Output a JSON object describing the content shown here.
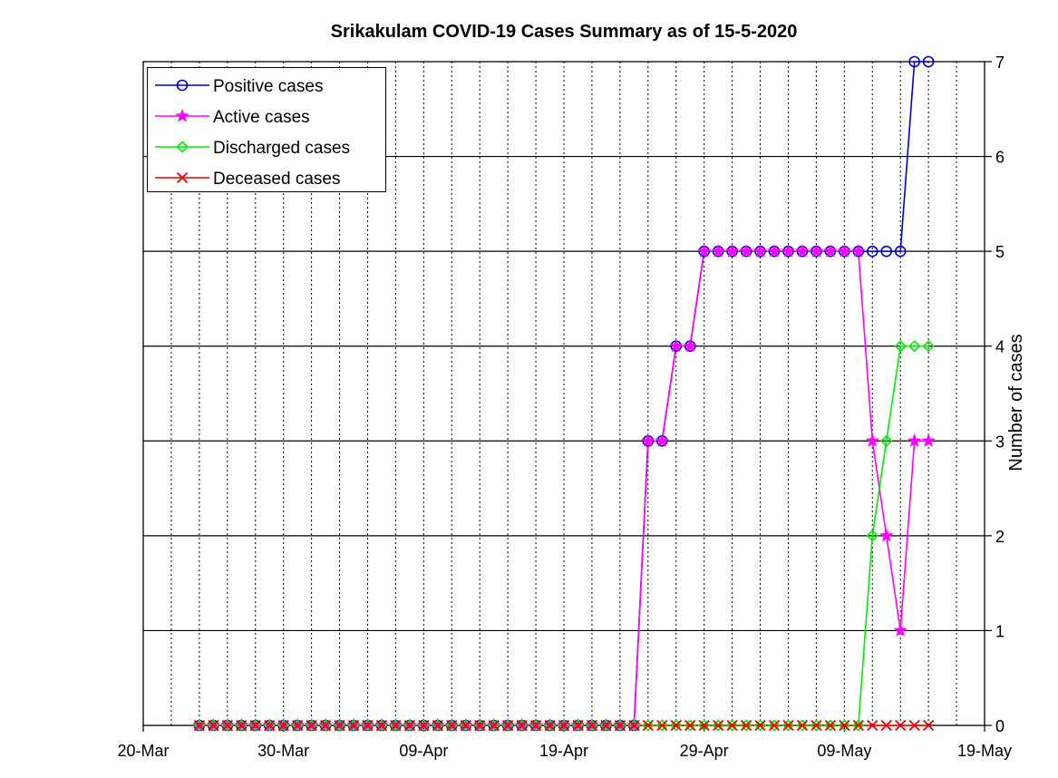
{
  "chart_data": {
    "type": "line",
    "title": "Srikakulam COVID-19 Cases Summary as of 15-5-2020",
    "xlabel": "",
    "ylabel": "Number of cases",
    "x_start": "2020-03-24",
    "x_end": "2020-05-15",
    "x_ticks": [
      "20-Mar",
      "30-Mar",
      "09-Apr",
      "19-Apr",
      "29-Apr",
      "09-May",
      "19-May"
    ],
    "y_ticks": [
      "0",
      "1",
      "2",
      "3",
      "4",
      "5",
      "6",
      "7"
    ],
    "xlim": [
      "2020-03-20",
      "2020-05-19"
    ],
    "ylim": [
      0,
      7
    ],
    "grid": "x-dotted, y-solid",
    "y_axis_side": "right",
    "legend_position": "top-left",
    "series": [
      {
        "name": "Positive cases",
        "color": "#0000cc",
        "marker": "circle",
        "values": [
          0,
          0,
          0,
          0,
          0,
          0,
          0,
          0,
          0,
          0,
          0,
          0,
          0,
          0,
          0,
          0,
          0,
          0,
          0,
          0,
          0,
          0,
          0,
          0,
          0,
          0,
          0,
          0,
          0,
          0,
          0,
          0,
          3,
          3,
          4,
          4,
          5,
          5,
          5,
          5,
          5,
          5,
          5,
          5,
          5,
          5,
          5,
          5,
          5,
          5,
          5,
          7,
          7
        ]
      },
      {
        "name": "Active cases",
        "color": "#ff00ff",
        "marker": "star",
        "values": [
          0,
          0,
          0,
          0,
          0,
          0,
          0,
          0,
          0,
          0,
          0,
          0,
          0,
          0,
          0,
          0,
          0,
          0,
          0,
          0,
          0,
          0,
          0,
          0,
          0,
          0,
          0,
          0,
          0,
          0,
          0,
          0,
          3,
          3,
          4,
          4,
          5,
          5,
          5,
          5,
          5,
          5,
          5,
          5,
          5,
          5,
          5,
          5,
          3,
          2,
          1,
          3,
          3
        ]
      },
      {
        "name": "Discharged cases",
        "color": "#00ee00",
        "marker": "diamond",
        "values": [
          0,
          0,
          0,
          0,
          0,
          0,
          0,
          0,
          0,
          0,
          0,
          0,
          0,
          0,
          0,
          0,
          0,
          0,
          0,
          0,
          0,
          0,
          0,
          0,
          0,
          0,
          0,
          0,
          0,
          0,
          0,
          0,
          0,
          0,
          0,
          0,
          0,
          0,
          0,
          0,
          0,
          0,
          0,
          0,
          0,
          0,
          0,
          0,
          2,
          3,
          4,
          4,
          4
        ]
      },
      {
        "name": "Deceased cases",
        "color": "#ee0000",
        "marker": "x",
        "values": [
          0,
          0,
          0,
          0,
          0,
          0,
          0,
          0,
          0,
          0,
          0,
          0,
          0,
          0,
          0,
          0,
          0,
          0,
          0,
          0,
          0,
          0,
          0,
          0,
          0,
          0,
          0,
          0,
          0,
          0,
          0,
          0,
          0,
          0,
          0,
          0,
          0,
          0,
          0,
          0,
          0,
          0,
          0,
          0,
          0,
          0,
          0,
          0,
          0,
          0,
          0,
          0,
          0
        ]
      }
    ]
  }
}
